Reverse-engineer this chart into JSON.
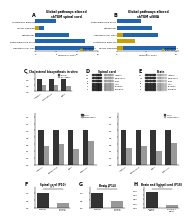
{
  "panel_a_title": "Global pathways altered\nshTGM spinal cord",
  "panel_b_title": "Global pathways altered\nshTGM siSNA",
  "panel_a_categories": [
    "Hepatocellular carcinoma deregulation",
    "Reprogramming on lipid biosynthesis",
    "Metabolism",
    "mTOR signaling",
    "Glutathione biosynthesis"
  ],
  "panel_a_values_blue": [
    14,
    12,
    8,
    2,
    5
  ],
  "panel_a_values_gold": [
    0,
    0,
    0,
    1,
    0
  ],
  "panel_b_categories": [
    "mTOR signaling",
    "Glutathione biosynthesis",
    "Hepatocellular carcinoma deregulation",
    "Metabolism",
    "Reprogramming on lipid biosynthesis"
  ],
  "panel_b_values_blue": [
    10,
    2,
    7,
    6,
    4
  ],
  "panel_b_values_gold": [
    1,
    3,
    1,
    0,
    0
  ],
  "bar_color_blue": "#2166ac",
  "bar_color_gold": "#c8a000",
  "panel_c_title": "Cholesterol biosynthesis in vitro",
  "panel_c_categories": [
    "Integrin",
    "Hmopexin1",
    "Fibas"
  ],
  "panel_c_control": [
    1.0,
    1.0,
    1.0
  ],
  "panel_c_treatment": [
    0.5,
    0.55,
    0.42
  ],
  "wb_spinalcord_title": "Spinal cord",
  "wb_brain_title": "Brain",
  "wb_rows": 6,
  "wb_row_labels": [
    "Integrin",
    "Hmopexin1",
    "Fibas",
    "Actin",
    "Dynactin",
    "b-Adaptin"
  ],
  "wb_kda_labels": [
    "250",
    "148",
    "50",
    "37",
    "25",
    "25"
  ],
  "panel_d_title": "Spinal cord (P10)",
  "panel_d_vals": [
    1.0,
    0.32
  ],
  "panel_d_xlabels": [
    "Control",
    "shTGM\nvehicle"
  ],
  "panel_e_title": "Brain (P14)",
  "panel_e_vals": [
    1.0,
    0.48
  ],
  "panel_e_xlabels": [
    "Control",
    "shTGM\nvehicle"
  ],
  "panel_f_title": "Brain and Spinal cord (P18)",
  "panel_f_vals": [
    0.88,
    0.18
  ],
  "panel_f_xlabels": [
    "shTGM\nalone",
    "shTGM +\nsiRNA"
  ],
  "bg_color": "#ffffff",
  "dark_bar": "#333333",
  "light_bar": "#999999",
  "wb_dark": "#222222",
  "wb_mid": "#555555",
  "wb_light": "#bbbbbb"
}
